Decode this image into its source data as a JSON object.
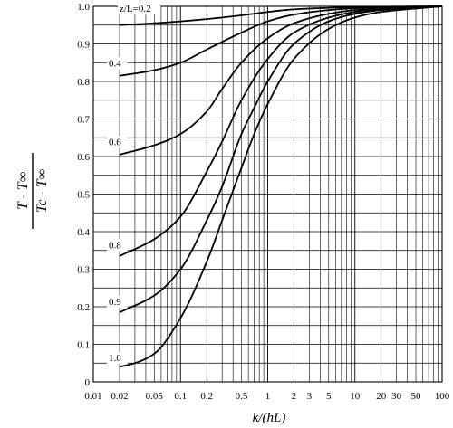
{
  "chart_data": {
    "type": "line",
    "xscale": "log",
    "xlim": [
      0.01,
      100
    ],
    "ylim": [
      0,
      1.0
    ],
    "grid": true,
    "xlabel": "k/(hL)",
    "ylabel": {
      "numerator": "T - T∞",
      "denominator": "Tc - T∞"
    },
    "xticks": [
      {
        "value": 0.01,
        "label": "0.01"
      },
      {
        "value": 0.02,
        "label": "0.02"
      },
      {
        "value": 0.05,
        "label": "0.05"
      },
      {
        "value": 0.1,
        "label": "0.1"
      },
      {
        "value": 0.2,
        "label": "0.2"
      },
      {
        "value": 0.5,
        "label": "0.5"
      },
      {
        "value": 1,
        "label": "1"
      },
      {
        "value": 2,
        "label": "2"
      },
      {
        "value": 3,
        "label": "3"
      },
      {
        "value": 5,
        "label": "5"
      },
      {
        "value": 10,
        "label": "10"
      },
      {
        "value": 20,
        "label": "20"
      },
      {
        "value": 30,
        "label": "30"
      },
      {
        "value": 50,
        "label": "50"
      },
      {
        "value": 100,
        "label": "100"
      }
    ],
    "yticks": [
      {
        "value": 0,
        "label": "0"
      },
      {
        "value": 0.1,
        "label": "0.1"
      },
      {
        "value": 0.2,
        "label": "0.2"
      },
      {
        "value": 0.3,
        "label": "0.3"
      },
      {
        "value": 0.4,
        "label": "0.4"
      },
      {
        "value": 0.5,
        "label": "0.5"
      },
      {
        "value": 0.6,
        "label": "0.6"
      },
      {
        "value": 0.7,
        "label": "0.7"
      },
      {
        "value": 0.8,
        "label": "0.8"
      },
      {
        "value": 0.9,
        "label": "0.9"
      },
      {
        "value": 1.0,
        "label": "1.0"
      }
    ],
    "series": [
      {
        "name": "z/L=0.2",
        "label_x": 0.02,
        "label_y": 0.985,
        "x": [
          0.02,
          0.05,
          0.1,
          0.2,
          0.5,
          1,
          2,
          5,
          10,
          20,
          100
        ],
        "y": [
          0.95,
          0.955,
          0.96,
          0.966,
          0.976,
          0.985,
          0.992,
          0.996,
          0.998,
          0.999,
          1.0
        ]
      },
      {
        "name": "0.4",
        "label_x": 0.015,
        "label_y": 0.84,
        "x": [
          0.02,
          0.05,
          0.1,
          0.2,
          0.5,
          1,
          2,
          5,
          10,
          20,
          100
        ],
        "y": [
          0.815,
          0.83,
          0.85,
          0.885,
          0.93,
          0.96,
          0.978,
          0.99,
          0.995,
          0.998,
          1.0
        ]
      },
      {
        "name": "0.6",
        "label_x": 0.015,
        "label_y": 0.63,
        "x": [
          0.02,
          0.05,
          0.1,
          0.2,
          0.3,
          0.5,
          1,
          2,
          5,
          10,
          20,
          100
        ],
        "y": [
          0.605,
          0.63,
          0.66,
          0.72,
          0.78,
          0.85,
          0.915,
          0.955,
          0.98,
          0.99,
          0.995,
          1.0
        ]
      },
      {
        "name": "0.8",
        "label_x": 0.015,
        "label_y": 0.355,
        "x": [
          0.02,
          0.05,
          0.1,
          0.2,
          0.3,
          0.5,
          1,
          2,
          5,
          10,
          20,
          100
        ],
        "y": [
          0.335,
          0.38,
          0.44,
          0.56,
          0.64,
          0.75,
          0.86,
          0.93,
          0.97,
          0.985,
          0.993,
          1.0
        ]
      },
      {
        "name": "0.9",
        "label_x": 0.015,
        "label_y": 0.205,
        "x": [
          0.02,
          0.05,
          0.1,
          0.2,
          0.3,
          0.5,
          0.7,
          1,
          2,
          5,
          10,
          20,
          100
        ],
        "y": [
          0.185,
          0.23,
          0.3,
          0.43,
          0.52,
          0.66,
          0.73,
          0.8,
          0.9,
          0.96,
          0.98,
          0.99,
          1.0
        ]
      },
      {
        "name": "1.0",
        "label_x": 0.015,
        "label_y": 0.055,
        "x": [
          0.02,
          0.03,
          0.05,
          0.1,
          0.2,
          0.3,
          0.5,
          0.7,
          1,
          2,
          5,
          10,
          20,
          100
        ],
        "y": [
          0.04,
          0.05,
          0.075,
          0.17,
          0.32,
          0.43,
          0.57,
          0.66,
          0.74,
          0.86,
          0.94,
          0.97,
          0.985,
          1.0
        ]
      }
    ]
  }
}
